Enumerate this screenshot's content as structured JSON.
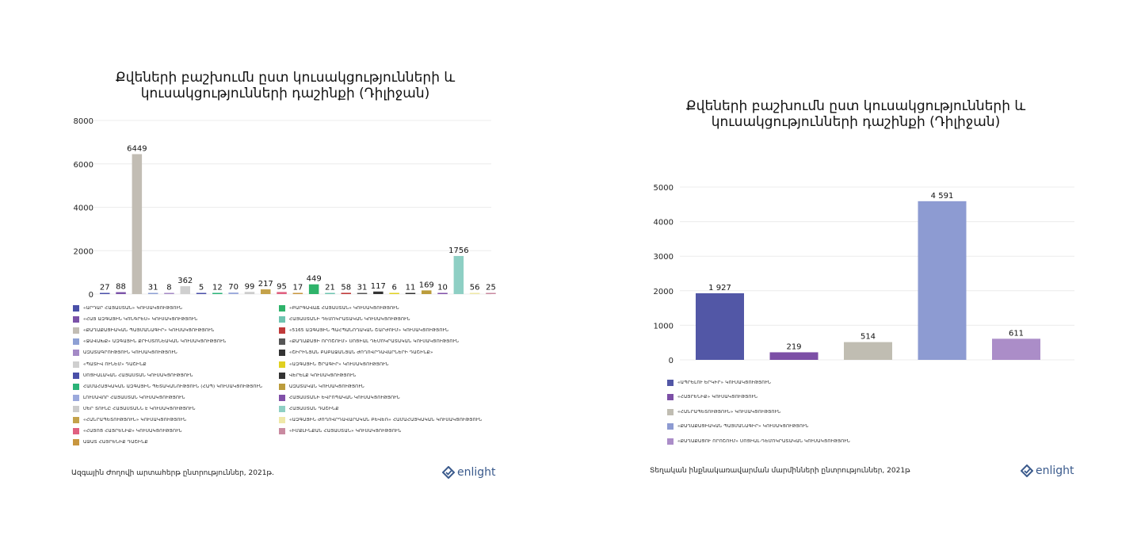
{
  "chart_data": [
    {
      "type": "bar",
      "title": "Քվեների բաշխումն ըստ կուսակցությունների և\nկուսակցությունների դաշինքի (Դիլիջան)",
      "ylim": [
        0,
        8000
      ],
      "yticks": [
        "0",
        "2000",
        "4000",
        "6000",
        "8000"
      ],
      "grid": true,
      "legend_position": "bottom",
      "categories": [
        "«ԱՐԴԱՐ ՀԱՅԱՍՏԱՆ» ԿՈՒՍԱԿՑՈՒԹՅՈՒՆ",
        "«ՀԱՅ ԱԶԳԱՅԻՆ ԿՈՆԳՐԵՍ» ԿՈՒՍԱԿՑՈՒԹՅՈՒՆ",
        "«ՔԱՂԱՔԱՑԻԱԿԱՆ ՊԱՅՄԱՆԱԳԻՐ» ԿՈՒՍԱԿՑՈՒԹՅՈՒՆ",
        "«ՋԱՎԱԽՔ» ԱԶԳԱՅԻՆ ՔՐԻՍՏՈՆԵԱԿԱՆ ԿՈՒՍԱԿՑՈՒԹՅՈՒՆ",
        "ԱԶԱՏԱԳՐՈՒԹՅՈՒՆ ԿՈՒՍԱԿՑՈՒԹՅՈՒՆ",
        "«ՊԱՏԻՎ ՈՒՆԵՄ» ԴԱՇԻՆՔ",
        "ՍՈՑԻԱԼԱԿԱՆ ՀԱՅԱՍՏԱՆ ԿՈՒՍԱԿՑՈՒԹՅՈՒՆ",
        "ՀԱՄԱՀԱՅԿԱԿԱՆ ԱԶԳԱՅԻՆ ՊԵՏԱԿԱՆՈՒԹՅՈՒՆ (ՀԱՊ) ԿՈՒՍԱԿՑՈՒԹՅՈՒՆ",
        "ԼՈՒՍԱՎՈՐ ՀԱՅԱՍՏԱՆ ԿՈՒՍԱԿՑՈՒԹՅՈՒՆ",
        "ՄԵՐ ՏՈՒՆԸ ՀԱՅԱՍՏԱՆՆ Է ԿՈՒՍԱԿՑՈՒԹՅՈՒՆ",
        "«ՀԱՆՐԱՊԵՏՈՒԹՅՈՒՆ» ԿՈՒՍԱԿՑՈՒԹՅՈՒՆ",
        "«ՀԱՅՈՑ ՀԱՅՐԵՆԻՔ» ԿՈՒՍԱԿՑՈՒԹՅՈՒՆ",
        "ԱՁԱՏ ՀԱՅՐԵՆԻՔ ԴԱՇԻՆՔ",
        "«ԲԱՐԳԱՎԱՃ ՀԱՅԱՍՏԱՆ» ԿՈՒՍԱԿՑՈՒԹՅՈՒՆ",
        "ՀԱՅԱՍՏԱՆԻ ԴԵՄՈԿՐԱՏԱԿԱՆ ԿՈՒՍԱԿՑՈՒԹՅՈՒՆ",
        "«5165 ԱԶԳԱՅԻՆ ՊԱՀՊԱՆՈՂԱԿԱՆ ՇԱՐԺՈՒՄ» ԿՈՒՍԱԿՑՈՒԹՅՈՒՆ",
        "«ՔԱՂԱՔԱՑԻ ՈՐՈՇՈՒՄ» ՍՈՑԻԱԼ ԴԵՄՈԿՐԱՏԱԿԱՆ ԿՈՒՍԱԿՑՈՒԹՅՈՒՆ",
        "«ՇԻՐԻՆՅԱՆ ԲԱԲԱՋԱՆՅԱՆ ԺՈՂՈՎՐԴԱՎԱՐՆԵՐԻ ԴԱՇԻՆՔ»",
        "«ԱԶԳԱՅԻՆ ԾՐԱԳԻՐ» ԿՈՒՍԱԿՑՈՒԹՅՈՒՆ",
        "ՎԵՐԵԼՔ ԿՈՒՍԱԿՑՈՒԹՅՈՒՆ",
        "ԱԶԱՏԱԿԱՆ ԿՈՒՍԱԿՑՈՒԹՅՈՒՆ",
        "ՀԱՅԱՍՏԱՆԻ ԵՎՐՈՊԱԿԱՆ ԿՈՒՍԱԿՑՈՒԹՅՈՒՆ",
        "ՀԱՅԱՍՏԱՆ ԴԱՇԻՆՔ",
        "«ԱԶԳԱՅԻՆ ԺՈՂՈՎՐԴԱՎԱՐԱԿԱՆ ԲԵՎԵՌ» ՀԱՄԱՀԱՅԿԱԿԱՆ ԿՈՒՍԱԿՑՈՒԹՅՈՒՆ",
        "«ԻՄՔԼԻՆՔԱՆ ՀԱՅԱՍՏԱՆ» ԿՈՒՍԱԿՑՈՒԹՅՈՒՆ"
      ],
      "values": [
        27,
        88,
        6449,
        31,
        8,
        362,
        5,
        12,
        70,
        99,
        217,
        95,
        17,
        449,
        21,
        58,
        31,
        117,
        6,
        11,
        169,
        10,
        1756,
        56,
        25
      ],
      "colors": [
        "#4a50a8",
        "#7b52a8",
        "#c2bdb4",
        "#8ea0d4",
        "#a48ac6",
        "#cfcfcf",
        "#4a50a8",
        "#2bb378",
        "#9ba9dc",
        "#cccccc",
        "#c4a24a",
        "#e06080",
        "#c8963e",
        "#2eb36a",
        "#6ec4b0",
        "#c03a3a",
        "#555555",
        "#333333",
        "#e0d020",
        "#333333",
        "#bb9c3c",
        "#8050a8",
        "#8ecfc4",
        "#efe8a8",
        "#c98aa0"
      ]
    },
    {
      "type": "bar",
      "title": "Քվեների բաշխումն ըստ կուսակցությունների և\nկուսակցությունների դաշինքի (Դիլիջան)",
      "ylim": [
        0,
        5000
      ],
      "yticks": [
        "0",
        "1000",
        "2000",
        "3000",
        "4000",
        "5000"
      ],
      "grid": true,
      "legend_position": "bottom",
      "categories": [
        "«ԱՊՐԵԼՈՒ ԵՐԿԻՐ» ԿՈՒՍԱԿՑՈՒԹՅՈՒՆ",
        "«ՀԱՅՐԵՆԻՔ» ԿՈՒՍԱԿՑՈՒԹՅՈՒՆ",
        "«ՀԱՆՐԱՊԵՏՈՒԹՅՈՒՆ» ԿՈՒՍԱԿՑՈՒԹՅՈՒՆ",
        "«ՔԱՂԱՔԱՑԻԱԿԱՆ ՊԱՅՄԱՆԱԳԻՐ» ԿՈՒՍԱԿՑՈՒԹՅՈՒՆ",
        "«ՔԱՂԱՔԱՑՈՒ ՈՐՈՇՈՒՄ» ՍՈՑԻԱԼ-ԴԵՄՈԿՐԱՏԱԿԱՆ ԿՈՒՍԱԿՑՈՒԹՅՈՒՆ"
      ],
      "values": [
        1927,
        219,
        514,
        4591,
        611
      ],
      "value_labels": [
        "1 927",
        "219",
        "514",
        "4 591",
        "611"
      ],
      "colors": [
        "#5257a6",
        "#7c4fa6",
        "#c0bdb2",
        "#8d9bd2",
        "#ab8dc8"
      ]
    }
  ],
  "panels": [
    {
      "source": "Ազգային Ժողովի արտահերթ ընտրություններ, 2021թ.",
      "logo_text": "enlight",
      "logo_icon": "diamond-check-icon",
      "brand_color": "#3a5a8c"
    },
    {
      "source": "Տեղական ինքնակառավարման մարմինների ընտրություններ, 2021թ",
      "logo_text": "enlight",
      "logo_icon": "diamond-check-icon",
      "brand_color": "#3a5a8c"
    }
  ]
}
